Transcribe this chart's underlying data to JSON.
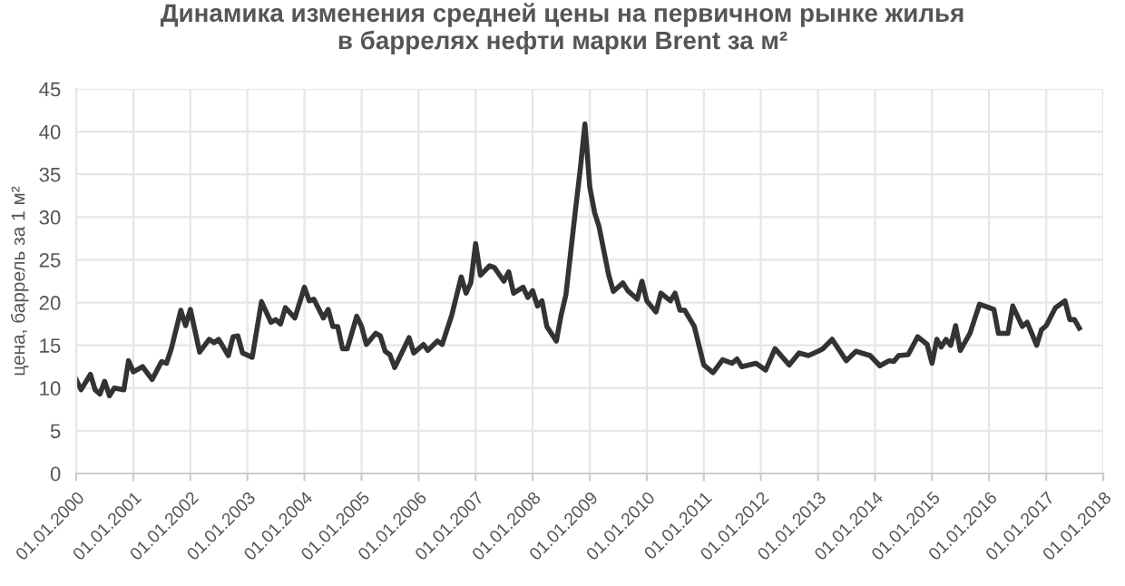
{
  "chart_data": {
    "type": "line",
    "title": "Динамика изменения средней цены на первичном рынке жилья\nв баррелях нефти марки Brent за м²",
    "ylabel": "цена, баррель за 1 м²",
    "x": [
      "2000-01",
      "2000-02",
      "2000-04",
      "2000-05",
      "2000-06",
      "2000-07",
      "2000-08",
      "2000-09",
      "2000-11",
      "2000-12",
      "2001-01",
      "2001-03",
      "2001-05",
      "2001-07",
      "2001-08",
      "2001-09",
      "2001-11",
      "2001-12",
      "2002-01",
      "2002-03",
      "2002-05",
      "2002-06",
      "2002-07",
      "2002-09",
      "2002-10",
      "2002-11",
      "2002-12",
      "2003-02",
      "2003-04",
      "2003-06",
      "2003-07",
      "2003-08",
      "2003-09",
      "2003-11",
      "2004-01",
      "2004-02",
      "2004-03",
      "2004-05",
      "2004-06",
      "2004-07",
      "2004-08",
      "2004-09",
      "2004-10",
      "2004-12",
      "2005-01",
      "2005-02",
      "2005-04",
      "2005-05",
      "2005-06",
      "2005-07",
      "2005-08",
      "2005-11",
      "2005-12",
      "2006-02",
      "2006-03",
      "2006-05",
      "2006-06",
      "2006-08",
      "2006-10",
      "2006-11",
      "2006-12",
      "2007-01",
      "2007-02",
      "2007-04",
      "2007-05",
      "2007-07",
      "2007-08",
      "2007-09",
      "2007-11",
      "2007-12",
      "2008-01",
      "2008-02",
      "2008-03",
      "2008-04",
      "2008-06",
      "2008-07",
      "2008-08",
      "2008-10",
      "2008-11",
      "2008-12",
      "2009-01",
      "2009-02",
      "2009-03",
      "2009-05",
      "2009-06",
      "2009-08",
      "2009-09",
      "2009-11",
      "2009-12",
      "2010-01",
      "2010-03",
      "2010-04",
      "2010-06",
      "2010-07",
      "2010-08",
      "2010-09",
      "2010-11",
      "2011-01",
      "2011-03",
      "2011-05",
      "2011-07",
      "2011-08",
      "2011-09",
      "2011-12",
      "2012-02",
      "2012-04",
      "2012-07",
      "2012-09",
      "2012-11",
      "2013-01",
      "2013-02",
      "2013-04",
      "2013-07",
      "2013-09",
      "2013-12",
      "2014-02",
      "2014-04",
      "2014-05",
      "2014-06",
      "2014-08",
      "2014-10",
      "2014-12",
      "2015-01",
      "2015-02",
      "2015-03",
      "2015-04",
      "2015-05",
      "2015-06",
      "2015-07",
      "2015-09",
      "2015-11",
      "2016-01",
      "2016-02",
      "2016-03",
      "2016-05",
      "2016-06",
      "2016-08",
      "2016-09",
      "2016-11",
      "2016-12",
      "2017-01",
      "2017-03",
      "2017-05",
      "2017-06",
      "2017-07",
      "2017-08"
    ],
    "series": [
      {
        "color": "#333333",
        "values": [
          11.0,
          9.8,
          11.6,
          9.8,
          9.3,
          10.8,
          9.1,
          10.0,
          9.8,
          13.2,
          11.9,
          12.5,
          11.0,
          13.1,
          12.9,
          14.6,
          19.1,
          17.3,
          19.2,
          14.2,
          15.7,
          15.3,
          15.7,
          13.8,
          16.0,
          16.1,
          14.1,
          13.6,
          20.1,
          17.7,
          18.0,
          17.5,
          19.4,
          18.2,
          21.8,
          20.2,
          20.4,
          18.2,
          19.2,
          17.2,
          17.2,
          14.6,
          14.6,
          18.4,
          17.2,
          15.1,
          16.4,
          16.1,
          14.3,
          13.9,
          12.4,
          15.9,
          14.1,
          15.1,
          14.4,
          15.5,
          15.1,
          18.5,
          23.0,
          21.1,
          22.3,
          26.9,
          23.2,
          24.3,
          24.1,
          22.5,
          23.6,
          21.1,
          21.8,
          20.6,
          21.4,
          19.6,
          20.2,
          17.2,
          15.5,
          18.5,
          20.9,
          30.8,
          35.6,
          40.9,
          33.5,
          30.5,
          28.9,
          23.3,
          21.3,
          22.3,
          21.4,
          20.4,
          22.5,
          20.2,
          18.9,
          21.1,
          20.2,
          21.1,
          19.1,
          19.1,
          17.2,
          12.7,
          11.8,
          13.3,
          12.9,
          13.4,
          12.5,
          12.9,
          12.1,
          14.6,
          12.7,
          14.1,
          13.8,
          14.3,
          14.6,
          15.7,
          13.2,
          14.3,
          13.8,
          12.6,
          13.2,
          13.1,
          13.8,
          13.9,
          16.0,
          15.1,
          12.9,
          15.7,
          14.8,
          15.7,
          15.0,
          17.3,
          14.4,
          16.4,
          19.8,
          19.4,
          19.2,
          16.4,
          16.4,
          19.6,
          17.2,
          17.7,
          15.0,
          16.8,
          17.3,
          19.4,
          20.2,
          18.0,
          18.0,
          17.0
        ]
      }
    ],
    "xlim": [
      "2000-01-01",
      "2018-01-01"
    ],
    "xticks": [
      {
        "value": "2000-01-01",
        "label": "01.01.2000"
      },
      {
        "value": "2001-01-01",
        "label": "01.01.2001"
      },
      {
        "value": "2002-01-01",
        "label": "01.01.2002"
      },
      {
        "value": "2003-01-01",
        "label": "01.01.2003"
      },
      {
        "value": "2004-01-01",
        "label": "01.01.2004"
      },
      {
        "value": "2005-01-01",
        "label": "01.01.2005"
      },
      {
        "value": "2006-01-01",
        "label": "01.01.2006"
      },
      {
        "value": "2007-01-01",
        "label": "01.01.2007"
      },
      {
        "value": "2008-01-01",
        "label": "01.01.2008"
      },
      {
        "value": "2009-01-01",
        "label": "01.01.2009"
      },
      {
        "value": "2010-01-01",
        "label": "01.01.2010"
      },
      {
        "value": "2011-01-01",
        "label": "01.01.2011"
      },
      {
        "value": "2012-01-01",
        "label": "01.01.2012"
      },
      {
        "value": "2013-01-01",
        "label": "01.01.2013"
      },
      {
        "value": "2014-01-01",
        "label": "01.01.2014"
      },
      {
        "value": "2015-01-01",
        "label": "01.01.2015"
      },
      {
        "value": "2016-01-01",
        "label": "01.01.2016"
      },
      {
        "value": "2017-01-01",
        "label": "01.01.2017"
      },
      {
        "value": "2018-01-01",
        "label": "01.01.2018"
      }
    ],
    "ylim": [
      0,
      45
    ],
    "yticks": [
      0,
      5,
      10,
      15,
      20,
      25,
      30,
      35,
      40,
      45
    ],
    "grid": true,
    "line_style": "solid",
    "marker": "none"
  }
}
